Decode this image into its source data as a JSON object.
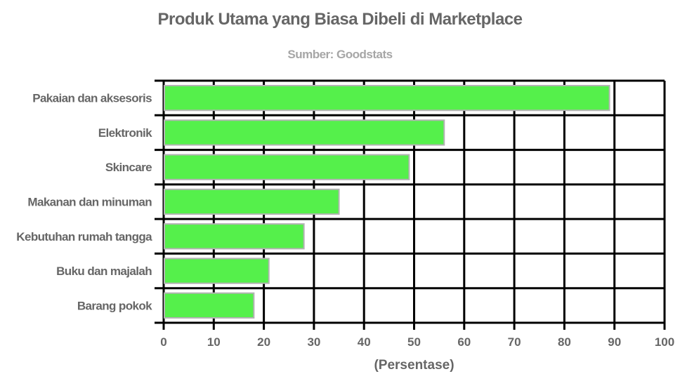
{
  "chart_data": {
    "type": "bar",
    "orientation": "horizontal",
    "title": "Produk Utama yang Biasa Dibeli di Marketplace",
    "subtitle": "Sumber: Goodstats",
    "xlabel": "(Persentase)",
    "ylabel": "",
    "categories": [
      "Pakaian dan aksesoris",
      "Elektronik",
      "Skincare",
      "Makanan dan minuman",
      "Kebutuhan rumah tangga",
      "Buku dan majalah",
      "Barang pokok"
    ],
    "values": [
      89,
      56,
      49,
      35,
      28,
      21,
      18
    ],
    "xlim": [
      0,
      100
    ],
    "xticks": [
      0,
      10,
      20,
      30,
      40,
      50,
      60,
      70,
      80,
      90,
      100
    ],
    "grid": true,
    "legend": null,
    "colors": {
      "bar_fill": "#55f04b",
      "bar_stroke": "#b3b3b3",
      "grid": "#000000",
      "text": "#666666",
      "subtitle": "#a6a6a6"
    }
  }
}
